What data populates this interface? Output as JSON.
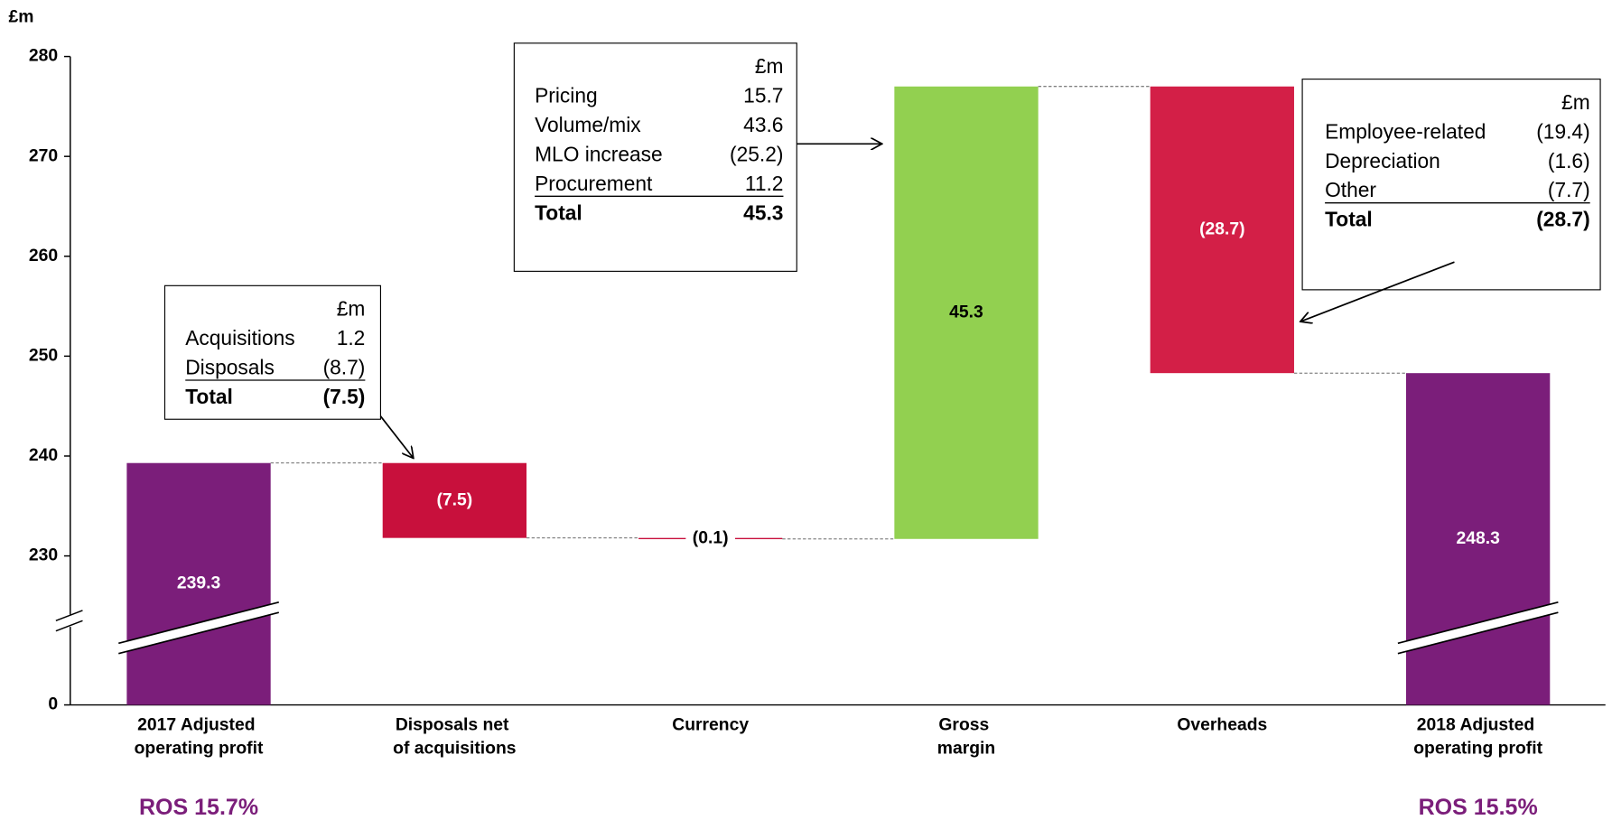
{
  "chart_data": {
    "type": "waterfall",
    "y_label": "£m",
    "categories": [
      "2017 Adjusted operating profit",
      "Disposals net of acquisitions",
      "Currency",
      "Gross margin",
      "Overheads",
      "2018 Adjusted operating profit"
    ],
    "values": [
      239.3,
      -7.5,
      -0.1,
      45.3,
      -28.7,
      248.3
    ],
    "value_labels": [
      "239.3",
      "(7.5)",
      "(0.1)",
      "45.3",
      "(28.7)",
      "248.3"
    ],
    "measure": [
      "total",
      "relative",
      "relative",
      "relative",
      "relative",
      "total"
    ],
    "colors": [
      "#7b1e7a",
      "#c8103c",
      "#c8103c",
      "#92d050",
      "#d31f47",
      "#7b1e7a"
    ],
    "ylim": [
      0,
      280
    ],
    "yticks": [
      0,
      230,
      240,
      250,
      260,
      270,
      280
    ],
    "y_break": true,
    "annotations": [
      {
        "text": "ROS 15.7%",
        "category": 0
      },
      {
        "text": "ROS 15.5%",
        "category": 5
      }
    ],
    "callouts": [
      {
        "category": 1,
        "header": "£m",
        "rows": [
          [
            "Acquisitions",
            "1.2"
          ],
          [
            "Disposals",
            "(8.7)"
          ]
        ],
        "total": [
          "Total",
          "(7.5)"
        ]
      },
      {
        "category": 3,
        "header": "£m",
        "rows": [
          [
            "Pricing",
            "15.7"
          ],
          [
            "Volume/mix",
            "43.6"
          ],
          [
            "MLO increase",
            "(25.2)"
          ],
          [
            "Procurement",
            "11.2"
          ]
        ],
        "total": [
          "Total",
          "45.3"
        ]
      },
      {
        "category": 4,
        "header": "£m",
        "rows": [
          [
            "Employee-related",
            "(19.4)"
          ],
          [
            "Depreciation",
            "(1.6)"
          ],
          [
            "Other",
            "(7.7)"
          ]
        ],
        "total": [
          "Total",
          "(28.7)"
        ]
      }
    ]
  }
}
